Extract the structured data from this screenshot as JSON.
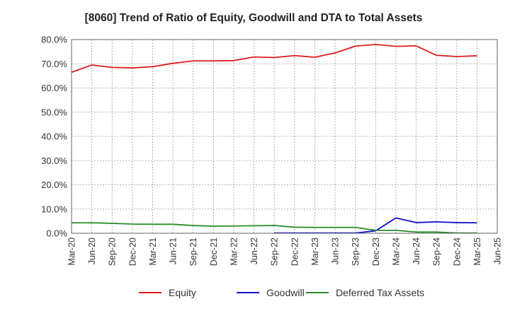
{
  "chart_data": {
    "type": "line",
    "title": "[8060]  Trend of Ratio of Equity, Goodwill and DTA to Total Assets",
    "xlabel": "",
    "ylabel": "",
    "ylim": [
      0,
      80
    ],
    "grid": true,
    "legend_position": "bottom",
    "y_ticks": [
      "0.0%",
      "10.0%",
      "20.0%",
      "30.0%",
      "40.0%",
      "50.0%",
      "60.0%",
      "70.0%",
      "80.0%"
    ],
    "x": [
      "Mar-20",
      "Jun-20",
      "Sep-20",
      "Dec-20",
      "Mar-21",
      "Jun-21",
      "Sep-21",
      "Dec-21",
      "Mar-22",
      "Jun-22",
      "Sep-22",
      "Dec-22",
      "Mar-23",
      "Jun-23",
      "Sep-23",
      "Dec-23",
      "Mar-24",
      "Jun-24",
      "Sep-24",
      "Dec-24",
      "Mar-25",
      "Jun-25"
    ],
    "series": [
      {
        "name": "Equity",
        "color": "#dd1c1c",
        "values": [
          66.5,
          69.5,
          68.5,
          68.3,
          68.8,
          70.2,
          71.2,
          71.2,
          71.3,
          72.8,
          72.6,
          73.4,
          72.7,
          74.5,
          77.3,
          78.0,
          77.2,
          77.4,
          73.5,
          73.0,
          73.3,
          null
        ]
      },
      {
        "name": "Goodwill",
        "color": "#1010cc",
        "values": [
          null,
          null,
          null,
          null,
          null,
          null,
          null,
          null,
          null,
          null,
          0.1,
          0.1,
          0.1,
          0.1,
          0.1,
          1.0,
          6.3,
          4.4,
          4.7,
          4.4,
          4.3,
          null
        ]
      },
      {
        "name": "Deferred Tax Assets",
        "color": "#2a8c2a",
        "values": [
          4.3,
          4.3,
          4.1,
          3.8,
          3.7,
          3.7,
          3.2,
          2.9,
          3.0,
          3.1,
          3.2,
          2.5,
          2.4,
          2.4,
          2.4,
          1.2,
          1.2,
          0.5,
          0.5,
          0.1,
          0.1,
          null
        ]
      }
    ]
  }
}
